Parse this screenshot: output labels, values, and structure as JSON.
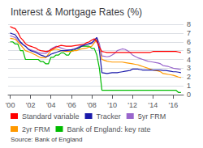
{
  "chart_data": {
    "type": "line",
    "title": "Interest & Mortgage Rates (%)",
    "source": "Source: Bank of England",
    "x": [
      2000.0,
      2000.25,
      2000.5,
      2000.75,
      2001.0,
      2001.25,
      2001.5,
      2001.75,
      2002.0,
      2002.25,
      2002.5,
      2002.75,
      2003.0,
      2003.25,
      2003.5,
      2003.75,
      2004.0,
      2004.25,
      2004.5,
      2004.75,
      2005.0,
      2005.25,
      2005.5,
      2005.75,
      2006.0,
      2006.25,
      2006.5,
      2006.75,
      2007.0,
      2007.25,
      2007.5,
      2007.75,
      2008.0,
      2008.25,
      2008.5,
      2008.75,
      2009.0,
      2009.25,
      2009.5,
      2009.75,
      2010.0,
      2010.25,
      2010.5,
      2010.75,
      2011.0,
      2011.25,
      2011.5,
      2011.75,
      2012.0,
      2012.25,
      2012.5,
      2012.75,
      2013.0,
      2013.25,
      2013.5,
      2013.75,
      2014.0,
      2014.25,
      2014.5,
      2014.75,
      2015.0,
      2015.25,
      2015.5,
      2015.75,
      2016.0,
      2016.25,
      2016.5,
      2016.75
    ],
    "series": [
      {
        "name": "Bank of England: key rate",
        "color": "#00bb00",
        "values": [
          6.0,
          6.0,
          5.75,
          5.75,
          5.0,
          5.0,
          4.0,
          4.0,
          4.0,
          4.0,
          4.0,
          4.0,
          3.75,
          3.75,
          3.5,
          3.5,
          4.25,
          4.25,
          4.5,
          4.5,
          4.75,
          4.75,
          4.5,
          4.5,
          5.0,
          5.0,
          5.25,
          5.25,
          5.5,
          5.5,
          5.5,
          5.5,
          5.25,
          5.25,
          4.5,
          3.0,
          0.5,
          0.5,
          0.5,
          0.5,
          0.5,
          0.5,
          0.5,
          0.5,
          0.5,
          0.5,
          0.5,
          0.5,
          0.5,
          0.5,
          0.5,
          0.5,
          0.5,
          0.5,
          0.5,
          0.5,
          0.5,
          0.5,
          0.5,
          0.5,
          0.5,
          0.5,
          0.5,
          0.5,
          0.5,
          0.5,
          0.25,
          0.25
        ]
      },
      {
        "name": "2yr FRM",
        "color": "#ff9900",
        "values": [
          6.4,
          6.35,
          6.3,
          6.0,
          5.7,
          5.35,
          5.0,
          4.9,
          4.8,
          4.65,
          4.5,
          4.35,
          4.2,
          4.2,
          4.2,
          4.6,
          5.0,
          5.1,
          5.2,
          5.1,
          5.0,
          4.95,
          4.9,
          4.9,
          4.9,
          5.0,
          5.0,
          5.1,
          5.2,
          5.25,
          5.3,
          5.4,
          5.5,
          5.9,
          6.3,
          5.5,
          4.0,
          3.9,
          3.8,
          3.75,
          3.7,
          3.7,
          3.7,
          3.7,
          3.7,
          3.65,
          3.6,
          3.55,
          3.5,
          3.45,
          3.4,
          3.3,
          3.2,
          3.1,
          3.0,
          2.9,
          2.8,
          2.75,
          2.7,
          2.6,
          2.4,
          2.35,
          2.3,
          2.25,
          2.2,
          2.1,
          2.0,
          1.95
        ]
      },
      {
        "name": "5yr FRM",
        "color": "#9966cc",
        "values": [
          6.7,
          6.6,
          6.5,
          6.2,
          5.9,
          5.7,
          5.5,
          5.2,
          5.1,
          5.0,
          4.9,
          4.8,
          4.7,
          4.7,
          4.7,
          4.9,
          5.2,
          5.35,
          5.5,
          5.4,
          5.3,
          5.2,
          5.1,
          5.1,
          5.1,
          5.2,
          5.3,
          5.45,
          5.6,
          5.65,
          5.7,
          5.75,
          5.8,
          6.1,
          6.5,
          5.8,
          4.4,
          4.35,
          4.3,
          4.35,
          4.5,
          4.7,
          5.0,
          5.1,
          5.2,
          5.15,
          5.0,
          4.8,
          4.5,
          4.35,
          4.2,
          4.1,
          4.0,
          3.9,
          3.8,
          3.75,
          3.7,
          3.65,
          3.6,
          3.5,
          3.3,
          3.25,
          3.2,
          3.1,
          3.0,
          2.95,
          2.9,
          2.85
        ]
      },
      {
        "name": "Tracker",
        "color": "#1a1aaa",
        "values": [
          7.0,
          6.9,
          6.8,
          6.4,
          6.0,
          5.7,
          5.5,
          5.2,
          5.0,
          4.9,
          4.8,
          4.65,
          4.5,
          4.4,
          4.3,
          4.4,
          4.6,
          4.7,
          4.8,
          4.9,
          5.0,
          5.0,
          5.0,
          5.05,
          5.1,
          5.15,
          5.2,
          5.35,
          5.5,
          5.6,
          5.7,
          5.8,
          5.9,
          6.2,
          6.5,
          5.0,
          2.5,
          2.45,
          2.4,
          2.45,
          2.5,
          2.5,
          2.5,
          2.55,
          2.6,
          2.65,
          2.7,
          2.75,
          2.9,
          2.9,
          2.9,
          2.85,
          2.8,
          2.8,
          2.8,
          2.8,
          2.8,
          2.8,
          2.8,
          2.8,
          2.75,
          2.75,
          2.7,
          2.65,
          2.6,
          2.6,
          2.55,
          2.5
        ]
      },
      {
        "name": "Standard variable",
        "color": "#ff0000",
        "values": [
          7.74,
          7.6,
          7.5,
          7.1,
          6.5,
          6.2,
          5.8,
          5.6,
          5.5,
          5.4,
          5.3,
          5.1,
          5.0,
          4.95,
          4.9,
          4.95,
          5.1,
          5.25,
          5.4,
          5.5,
          5.6,
          5.55,
          5.5,
          5.5,
          5.5,
          5.55,
          5.6,
          5.65,
          5.7,
          5.75,
          5.9,
          6.0,
          6.2,
          6.35,
          6.0,
          5.4,
          4.9,
          4.85,
          4.8,
          4.8,
          4.8,
          4.8,
          4.8,
          4.8,
          4.8,
          4.8,
          4.8,
          4.8,
          4.8,
          4.8,
          4.8,
          4.8,
          4.8,
          4.8,
          4.8,
          4.8,
          4.9,
          4.9,
          4.9,
          4.9,
          4.9,
          4.9,
          4.9,
          4.9,
          4.9,
          4.9,
          4.85,
          4.8
        ]
      }
    ],
    "xlim": [
      1999.8,
      2017.0
    ],
    "xticks": [
      {
        "value": 2000,
        "label": "'00"
      },
      {
        "value": 2002,
        "label": "'02"
      },
      {
        "value": 2004,
        "label": "'04"
      },
      {
        "value": 2006,
        "label": "'06"
      },
      {
        "value": 2008,
        "label": "'08"
      },
      {
        "value": 2010,
        "label": "'10"
      },
      {
        "value": 2012,
        "label": "'12"
      },
      {
        "value": 2014,
        "label": "'14"
      },
      {
        "value": 2016,
        "label": "'16"
      }
    ],
    "ylim": [
      0,
      8
    ],
    "yticks": [
      0,
      1,
      2,
      3,
      4,
      5,
      6,
      7,
      8
    ],
    "grid": true,
    "legend": "bottom"
  }
}
